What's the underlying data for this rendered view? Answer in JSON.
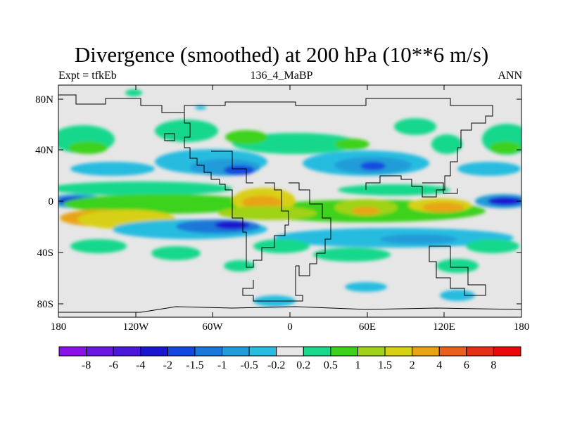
{
  "title": "Divergence (smoothed) at 200 hPa (10**6 m/s)",
  "subtitle_left": "Expt = tfkEb",
  "subtitle_center": "136_4_MaBP",
  "subtitle_right": "ANN",
  "lat_ticks": [
    "80N",
    "40N",
    "0",
    "40S",
    "80S"
  ],
  "lon_ticks": [
    "180",
    "120W",
    "60W",
    "0",
    "60E",
    "120E",
    "180"
  ],
  "colorbar": {
    "labels": [
      "-8",
      "-6",
      "-4",
      "-2",
      "-1.5",
      "-1",
      "-0.5",
      "-0.2",
      "0.2",
      "0.5",
      "1",
      "1.5",
      "2",
      "4",
      "6",
      "8"
    ],
    "colors": [
      "#8a12e8",
      "#6a16e0",
      "#4a16d8",
      "#1a16d0",
      "#1248e0",
      "#1a78d8",
      "#229cd8",
      "#28bce0",
      "#e6e6e6",
      "#18d88c",
      "#3cd21c",
      "#a0d218",
      "#d8d014",
      "#e8a414",
      "#e8601c",
      "#e43014",
      "#ea0808"
    ]
  },
  "palette": {
    "background_level": "#e6e6e6",
    "coast": "#000000"
  }
}
